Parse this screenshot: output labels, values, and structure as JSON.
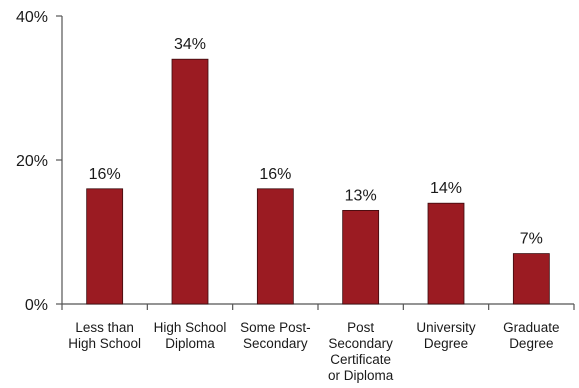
{
  "chart_data": {
    "type": "bar",
    "title": "",
    "xlabel": "",
    "ylabel": "",
    "categories": [
      [
        "Less than",
        "High School"
      ],
      [
        "High School",
        "Diploma"
      ],
      [
        "Some Post-",
        "Secondary"
      ],
      [
        "Post",
        "Secondary",
        "Certificate",
        "or Diploma"
      ],
      [
        "University",
        "Degree"
      ],
      [
        "Graduate",
        "Degree"
      ]
    ],
    "values": [
      16,
      34,
      16,
      13,
      14,
      7
    ],
    "value_labels": [
      "16%",
      "34%",
      "16%",
      "13%",
      "14%",
      "7%"
    ],
    "ylim": [
      0,
      40
    ],
    "yticks": [
      0,
      20,
      40
    ],
    "ytick_labels": [
      "0%",
      "20%",
      "40%"
    ],
    "grid": false,
    "legend": "none",
    "bar_color": "#9b1b22"
  }
}
